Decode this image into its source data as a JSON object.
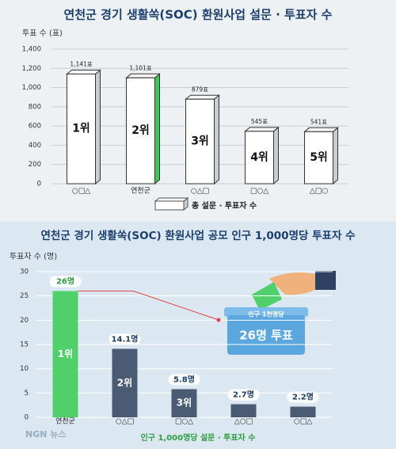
{
  "chart_data": [
    {
      "type": "bar",
      "title": "연천군 경기 생활쏙(SOC) 환원사업 설문 · 투표자  수",
      "y_label": "투표 수 (표)",
      "categories": [
        "○□△",
        "연천군",
        "○△□",
        "□○△",
        "△□○"
      ],
      "values": [
        1141,
        1101,
        879,
        545,
        541
      ],
      "value_labels": [
        "1,141표",
        "1,101표",
        "879표",
        "545표",
        "541표"
      ],
      "rank_labels": [
        "1위",
        "2위",
        "3위",
        "4위",
        "5위"
      ],
      "colors": [
        "#ffffff",
        "#ffffff",
        "#ffffff",
        "#ffffff",
        "#ffffff"
      ],
      "side_colors": [
        "#c9ced4",
        "#3dc95a",
        "#c9ced4",
        "#c9ced4",
        "#c9ced4"
      ],
      "ylim": [
        0,
        1400
      ],
      "yticks": [
        0,
        200,
        400,
        600,
        800,
        {
          "value": 1000,
          "label": "1,000"
        },
        {
          "value": 1200,
          "label": "1,200"
        },
        {
          "value": 1400,
          "label": "1,400"
        }
      ],
      "grid": true,
      "legend": "총 설문 · 투표자 수"
    },
    {
      "type": "bar",
      "title": "연천군 경기 생활쏙(SOC) 환원사업 공모 인구 1,000명당 투표자 수",
      "y_label": "투표자 수 (명)",
      "categories": [
        "연천군",
        "○△□",
        "□○△",
        "△○□",
        "○□△"
      ],
      "values": [
        26,
        14.1,
        5.8,
        2.7,
        2.2
      ],
      "value_labels": [
        "26명",
        "14.1명",
        "5.8명",
        "2.7명",
        "2.2명"
      ],
      "rank_labels": [
        "1위",
        "2위",
        "3위"
      ],
      "colors": [
        "#4fd06a",
        "#4b5b73",
        "#4b5b73",
        "#4b5b73",
        "#4b5b73"
      ],
      "ylim": [
        0,
        30
      ],
      "yticks": [
        0,
        5,
        10,
        15,
        20,
        25,
        30
      ],
      "grid": true,
      "legend": "인구 1,000명당 설문 · 투표자 수",
      "annotations": [
        "인구 1천명당",
        "26명 투표"
      ]
    }
  ],
  "watermark": "NGN 뉴스"
}
